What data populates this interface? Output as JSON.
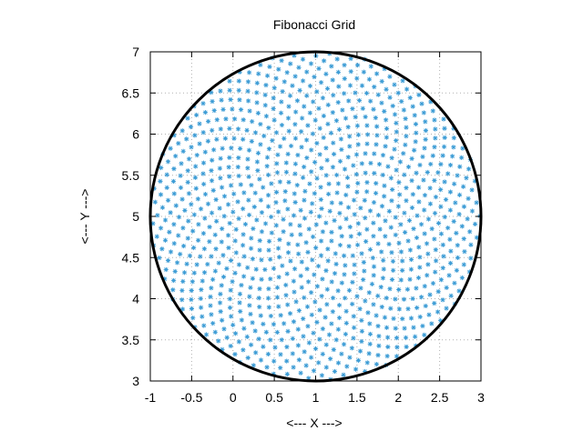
{
  "chart_data": {
    "type": "scatter",
    "title": "Fibonacci Grid",
    "xlabel": "<--- X --->",
    "ylabel": "<--- Y --->",
    "xlim": [
      -1,
      3
    ],
    "ylim": [
      3,
      7
    ],
    "x_ticks": [
      -1,
      -0.5,
      0,
      0.5,
      1,
      1.5,
      2,
      2.5,
      3
    ],
    "x_tick_labels": [
      "-1",
      "-0.5",
      "0",
      "0.5",
      "1",
      "1.5",
      "2",
      "2.5",
      "3"
    ],
    "y_ticks": [
      3,
      3.5,
      4,
      4.5,
      5,
      5.5,
      6,
      6.5,
      7
    ],
    "y_tick_labels": [
      "3",
      "3.5",
      "4",
      "4.5",
      "5",
      "5.5",
      "6",
      "6.5",
      "7"
    ],
    "grid": true,
    "legend": "none",
    "circle": {
      "center": [
        1,
        5
      ],
      "radius": 2,
      "color": "#000000"
    },
    "points": {
      "generator": "fibonacci-spiral",
      "count": 1000,
      "center": [
        1,
        5
      ],
      "radius": 2,
      "marker": "asterisk",
      "color": "#3a9bd5"
    }
  }
}
